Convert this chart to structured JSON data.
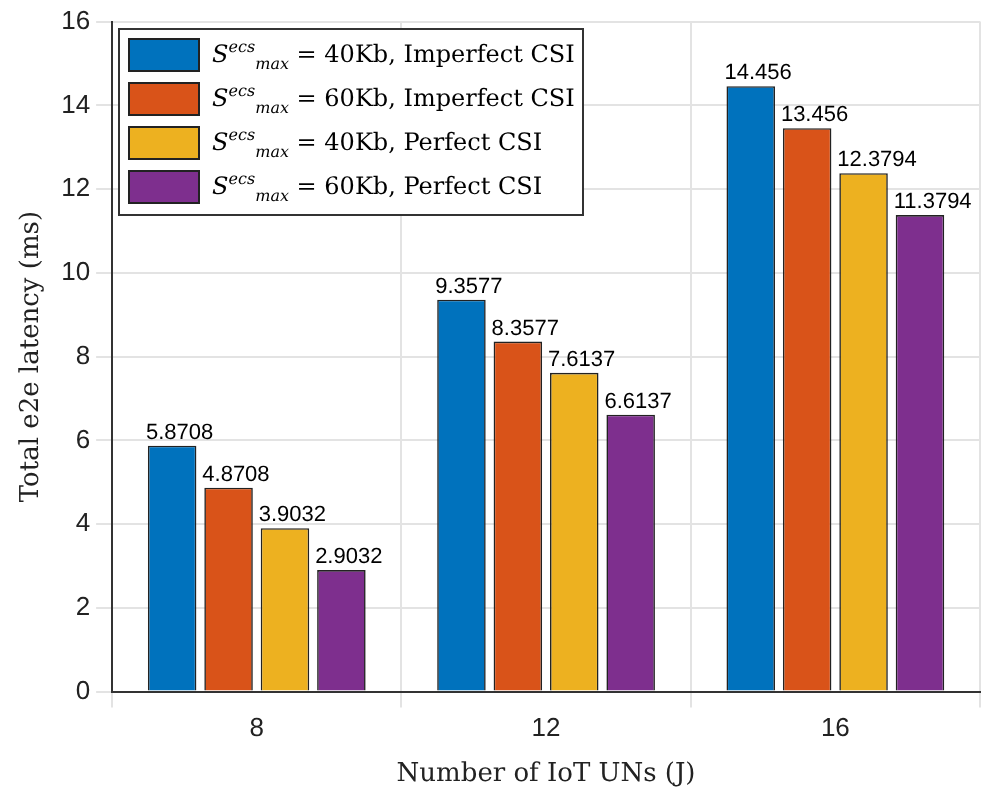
{
  "chart_data": {
    "type": "bar",
    "xlabel": "Number of IoT UNs (J)",
    "ylabel": "Total e2e latency (ms)",
    "categories": [
      "8",
      "12",
      "16"
    ],
    "series": [
      {
        "name": "S$^{ecs}$$_{max}$ = 40Kb, Imperfect CSI",
        "color": "#0072bd",
        "values": [
          5.8708,
          9.3577,
          14.456
        ]
      },
      {
        "name": "S$^{ecs}$$_{max}$ = 60Kb, Imperfect CSI",
        "color": "#d95319",
        "values": [
          4.8708,
          8.3577,
          13.456
        ]
      },
      {
        "name": "S$^{ecs}$$_{max}$ = 40Kb, Perfect CSI",
        "color": "#edb120",
        "values": [
          3.9032,
          7.6137,
          12.3794
        ]
      },
      {
        "name": "S$^{ecs}$$_{max}$ = 60Kb, Perfect CSI",
        "color": "#7e2f8e",
        "values": [
          2.9032,
          6.6137,
          11.3794
        ]
      }
    ],
    "ylim": [
      0,
      16
    ],
    "yticks": [
      0,
      2,
      4,
      6,
      8,
      10,
      12,
      14,
      16
    ],
    "grid": true,
    "legend": "top left",
    "data_labels": true
  }
}
